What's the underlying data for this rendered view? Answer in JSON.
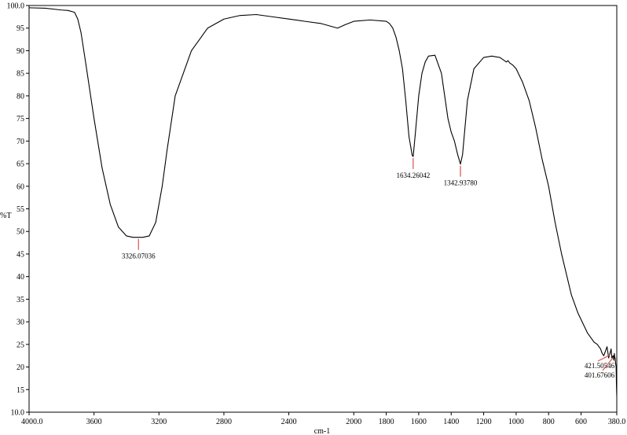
{
  "chart_data": {
    "type": "line",
    "title": "",
    "xlabel": "cm-1",
    "ylabel": "%T",
    "xlim": [
      4000.0,
      380.0
    ],
    "ylim": [
      10.0,
      100.0
    ],
    "x_reversed": true,
    "grid": false,
    "legend": "none",
    "x_ticks": [
      4000,
      3600,
      3200,
      2800,
      2400,
      2000,
      1800,
      1600,
      1400,
      1200,
      1000,
      800,
      600,
      380
    ],
    "x_tick_labels": [
      "4000.0",
      "3600",
      "3200",
      "2800",
      "2400",
      "2000",
      "1800",
      "1600",
      "1400",
      "1200",
      "1000",
      "800",
      "600",
      "380.0"
    ],
    "y_ticks": [
      10,
      15,
      20,
      25,
      30,
      35,
      40,
      45,
      50,
      55,
      60,
      65,
      70,
      75,
      80,
      85,
      90,
      95,
      100
    ],
    "y_tick_labels": [
      "10.0",
      "15",
      "20",
      "25",
      "30",
      "35",
      "40",
      "45",
      "50",
      "55",
      "60",
      "65",
      "70",
      "75",
      "80",
      "85",
      "90",
      "95",
      "100.0"
    ],
    "line_color": "#000000",
    "peak_color": "#d9534f",
    "series": [
      {
        "x": [
          4000,
          3900,
          3800,
          3760,
          3720,
          3700,
          3680,
          3650,
          3600,
          3550,
          3500,
          3450,
          3400,
          3360,
          3330,
          3300,
          3260,
          3220,
          3180,
          3150,
          3100,
          3000,
          2900,
          2800,
          2700,
          2600,
          2500,
          2400,
          2300,
          2200,
          2150,
          2100,
          2050,
          2000,
          1900,
          1800,
          1780,
          1760,
          1740,
          1720,
          1700,
          1680,
          1660,
          1640,
          1634,
          1620,
          1600,
          1580,
          1560,
          1540,
          1500,
          1460,
          1440,
          1420,
          1400,
          1380,
          1360,
          1343,
          1330,
          1300,
          1260,
          1200,
          1150,
          1100,
          1060,
          1050,
          1040,
          1020,
          1000,
          960,
          920,
          880,
          840,
          800,
          760,
          720,
          700,
          660,
          620,
          600,
          580,
          560,
          540,
          520,
          500,
          480,
          470,
          460,
          450,
          440,
          430,
          422,
          415,
          410,
          402,
          398,
          395,
          392,
          390,
          388,
          386,
          384,
          382,
          380
        ],
        "y": [
          99.5,
          99.4,
          99.0,
          98.9,
          98.5,
          97.0,
          94.0,
          87.0,
          75.0,
          64.0,
          56.0,
          51.0,
          49.0,
          48.7,
          48.7,
          48.7,
          49.0,
          52.0,
          60.0,
          68.0,
          80.0,
          90.0,
          95.0,
          97.0,
          97.8,
          98.0,
          97.5,
          97.0,
          96.5,
          96.0,
          95.5,
          95.0,
          95.8,
          96.5,
          96.8,
          96.5,
          96.0,
          95.0,
          93.0,
          90.0,
          86.0,
          79.0,
          71.0,
          66.8,
          66.6,
          72.0,
          80.0,
          85.0,
          87.5,
          88.8,
          89.0,
          85.0,
          80.0,
          75.0,
          72.0,
          70.0,
          67.0,
          64.9,
          67.0,
          79.0,
          86.0,
          88.5,
          88.8,
          88.5,
          87.5,
          87.8,
          87.3,
          86.8,
          86.0,
          83.0,
          79.0,
          73.0,
          66.0,
          60.0,
          52.0,
          45.0,
          42.0,
          36.0,
          32.0,
          30.5,
          29.0,
          27.5,
          26.5,
          25.5,
          25.0,
          24.0,
          23.0,
          22.5,
          23.5,
          24.5,
          22.0,
          23.0,
          24.0,
          22.0,
          22.5,
          21.5,
          23.0,
          22.0,
          22.0,
          21.0,
          20.5,
          20.0,
          16.0,
          13.5
        ]
      }
    ],
    "annotations": [
      {
        "x": 3326.07036,
        "y": 48.7,
        "label": "3326.07036"
      },
      {
        "x": 1634.26042,
        "y": 66.6,
        "label": "1634.26042"
      },
      {
        "x": 1342.9378,
        "y": 64.9,
        "label": "1342.93780"
      },
      {
        "x": 421.50546,
        "y": 23.0,
        "label": "421.50546"
      },
      {
        "x": 401.67606,
        "y": 22.5,
        "label": "401.67606"
      }
    ]
  }
}
